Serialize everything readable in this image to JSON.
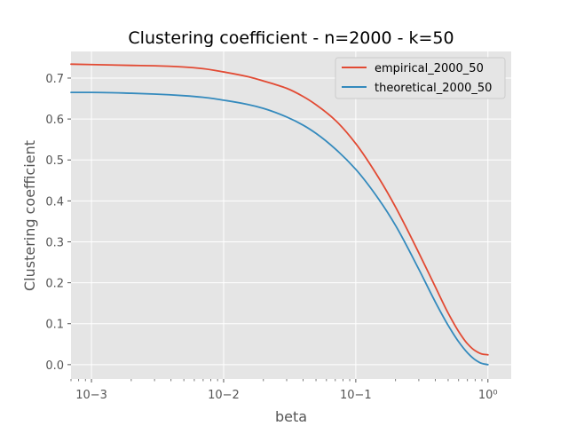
{
  "chart_data": {
    "type": "line",
    "title": "Clustering coefficient - n=2000 - k=50",
    "xlabel": "beta",
    "ylabel": "Clustering coefficient",
    "xscale": "log",
    "xlim": [
      0.0007,
      1.5
    ],
    "ylim": [
      -0.035,
      0.765
    ],
    "grid": true,
    "legend_position": "top-right",
    "xticks": [
      {
        "value": 0.001,
        "label": "10−3"
      },
      {
        "value": 0.01,
        "label": "10−2"
      },
      {
        "value": 0.1,
        "label": "10−1"
      },
      {
        "value": 1,
        "label": "10⁰"
      }
    ],
    "yticks": [
      {
        "value": 0.0,
        "label": "0.0"
      },
      {
        "value": 0.1,
        "label": "0.1"
      },
      {
        "value": 0.2,
        "label": "0.2"
      },
      {
        "value": 0.3,
        "label": "0.3"
      },
      {
        "value": 0.4,
        "label": "0.4"
      },
      {
        "value": 0.5,
        "label": "0.5"
      },
      {
        "value": 0.6,
        "label": "0.6"
      },
      {
        "value": 0.7,
        "label": "0.7"
      }
    ],
    "series": [
      {
        "name": "empirical_2000_50",
        "color": "#E24A33",
        "x": [
          0.0007,
          0.001,
          0.002,
          0.003,
          0.005,
          0.007,
          0.01,
          0.015,
          0.02,
          0.03,
          0.04,
          0.05,
          0.07,
          0.1,
          0.15,
          0.2,
          0.3,
          0.4,
          0.5,
          0.6,
          0.7,
          0.8,
          0.9,
          1.0
        ],
        "y": [
          0.734,
          0.733,
          0.731,
          0.73,
          0.727,
          0.723,
          0.715,
          0.704,
          0.693,
          0.675,
          0.655,
          0.635,
          0.597,
          0.54,
          0.455,
          0.385,
          0.273,
          0.19,
          0.126,
          0.081,
          0.051,
          0.034,
          0.026,
          0.024
        ]
      },
      {
        "name": "theoretical_2000_50",
        "color": "#348ABD",
        "x": [
          0.0007,
          0.001,
          0.002,
          0.003,
          0.005,
          0.007,
          0.01,
          0.015,
          0.02,
          0.03,
          0.04,
          0.05,
          0.07,
          0.1,
          0.15,
          0.2,
          0.3,
          0.4,
          0.5,
          0.6,
          0.7,
          0.8,
          0.9,
          1.0
        ],
        "y": [
          0.665,
          0.665,
          0.663,
          0.661,
          0.657,
          0.653,
          0.646,
          0.636,
          0.626,
          0.605,
          0.585,
          0.565,
          0.527,
          0.477,
          0.403,
          0.34,
          0.233,
          0.153,
          0.096,
          0.056,
          0.029,
          0.012,
          0.003,
          0.0
        ]
      }
    ]
  }
}
